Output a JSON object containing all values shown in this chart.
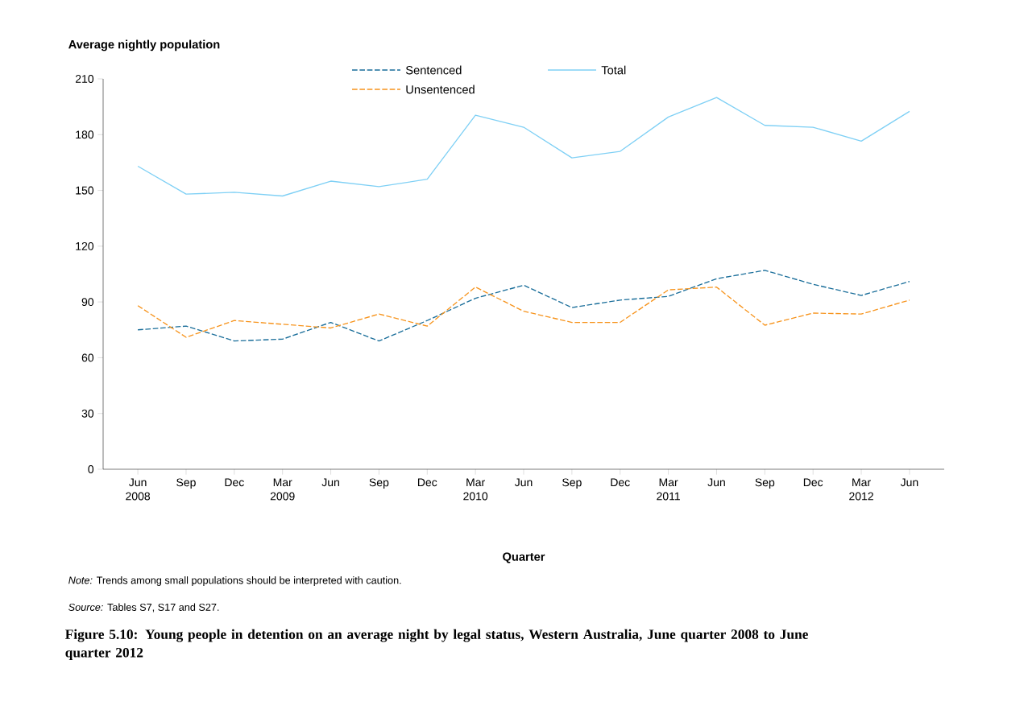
{
  "chart_data": {
    "type": "line",
    "title": "Figure 5.10: Young people in detention on an average night by legal status, Western Australia, June quarter 2008 to June quarter 2012",
    "ylabel": "Average nightly population",
    "xlabel": "Quarter",
    "categories": [
      "Jun 2008",
      "Sep",
      "Dec",
      "Mar 2009",
      "Jun",
      "Sep",
      "Dec",
      "Mar 2010",
      "Jun",
      "Sep",
      "Dec",
      "Mar 2011",
      "Jun",
      "Sep",
      "Dec",
      "Mar 2012",
      "Jun"
    ],
    "series": [
      {
        "name": "Sentenced",
        "color": "#1a6e9a",
        "line_style": "dashed",
        "values": [
          75,
          77,
          69,
          70,
          79,
          69,
          80,
          92,
          99,
          87,
          91,
          93,
          102.5,
          107,
          99.5,
          93.5,
          101
        ]
      },
      {
        "name": "Total",
        "color": "#7fd0f5",
        "line_style": "solid",
        "values": [
          163,
          148,
          149,
          147,
          155,
          152,
          156,
          190.5,
          184,
          167.5,
          171,
          189.5,
          200,
          185,
          184,
          176.5,
          192.5
        ]
      },
      {
        "name": "Unsentenced",
        "color": "#f7941d",
        "line_style": "dashed",
        "values": [
          88,
          71,
          80,
          78,
          76,
          83.5,
          77,
          98,
          85,
          79,
          79,
          96.5,
          98,
          77.5,
          84,
          83.5,
          91
        ]
      }
    ],
    "ylim": [
      0,
      210
    ],
    "yticks": [
      0,
      30,
      60,
      90,
      120,
      150,
      180,
      210
    ],
    "grid": false,
    "legend": "top",
    "marker": "none",
    "annotations": [
      "*Note:* Trends among small populations should be interpreted with caution.",
      "*Source:* Tables S7, S17 and S27."
    ]
  }
}
